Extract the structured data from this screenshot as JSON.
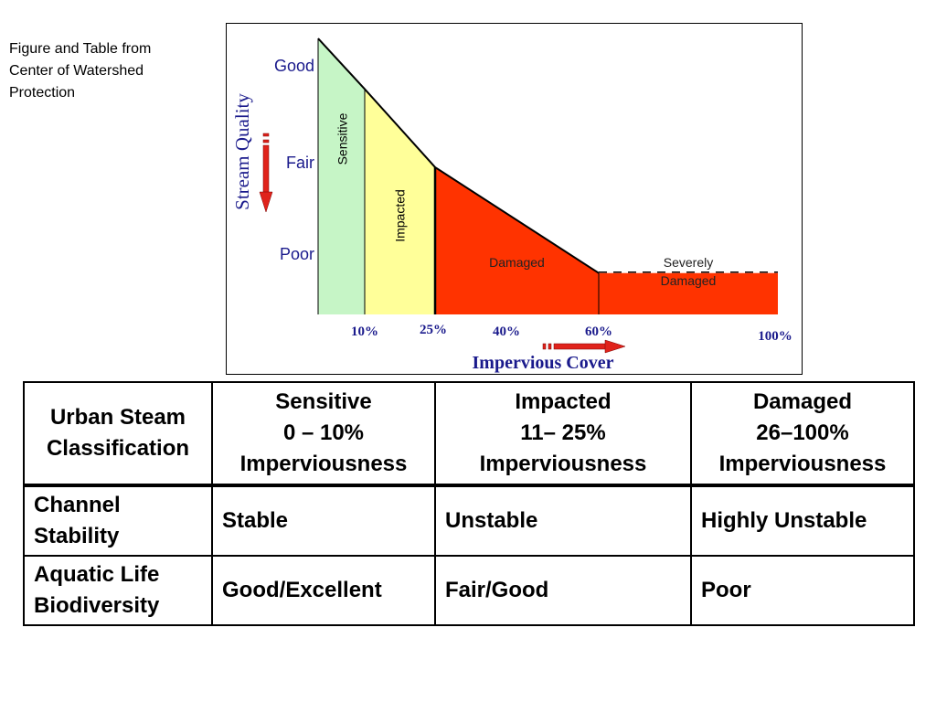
{
  "credit": {
    "lines": [
      "Figure and Table from",
      "Center of Watershed",
      "Protection"
    ]
  },
  "chart_data": {
    "type": "area",
    "title": "",
    "xlabel": "Impervious Cover",
    "ylabel": "Stream Quality",
    "x_ticks": [
      "10%",
      "25%",
      "40%",
      "60%",
      "100%"
    ],
    "y_ticks": [
      "Good",
      "Fair",
      "Poor"
    ],
    "zones": [
      {
        "name": "Sensitive",
        "x_start": 0,
        "x_end": 10,
        "color": "#c6f5c6"
      },
      {
        "name": "Impacted",
        "x_start": 10,
        "x_end": 25,
        "color": "#ffff99"
      },
      {
        "name": "Damaged",
        "x_start": 25,
        "x_end": 60,
        "color": "#ff3300"
      },
      {
        "name": "Severely Damaged",
        "x_start": 60,
        "x_end": 100,
        "color": "#ff3300"
      }
    ],
    "zone_labels": {
      "sensitive": "Sensitive",
      "impacted": "Impacted",
      "damaged": "Damaged",
      "severely_1": "Severely",
      "severely_2": "Damaged"
    },
    "quality_curve": [
      {
        "x": 0,
        "y": 3.0
      },
      {
        "x": 10,
        "y": 2.45
      },
      {
        "x": 25,
        "y": 1.6
      },
      {
        "x": 60,
        "y": 0.45
      },
      {
        "x": 100,
        "y": 0.45
      }
    ],
    "ylim": [
      0,
      3.1
    ],
    "xlim": [
      0,
      100
    ],
    "accent_text_color": "#1a1a8c",
    "arrow_color": "#e0231b"
  },
  "table": {
    "header": [
      [
        "Urban Steam",
        "Classification"
      ],
      [
        "Sensitive",
        "0 – 10%",
        "Imperviousness"
      ],
      [
        "Impacted",
        "11– 25%",
        "Imperviousness"
      ],
      [
        "Damaged",
        "26–100%",
        "Imperviousness"
      ]
    ],
    "rows": [
      {
        "label": [
          "Channel",
          "Stability"
        ],
        "values": [
          "Stable",
          "Unstable",
          "Highly Unstable"
        ]
      },
      {
        "label": [
          "Aquatic Life",
          "Biodiversity"
        ],
        "values": [
          "Good/Excellent",
          "Fair/Good",
          "Poor"
        ]
      }
    ]
  }
}
